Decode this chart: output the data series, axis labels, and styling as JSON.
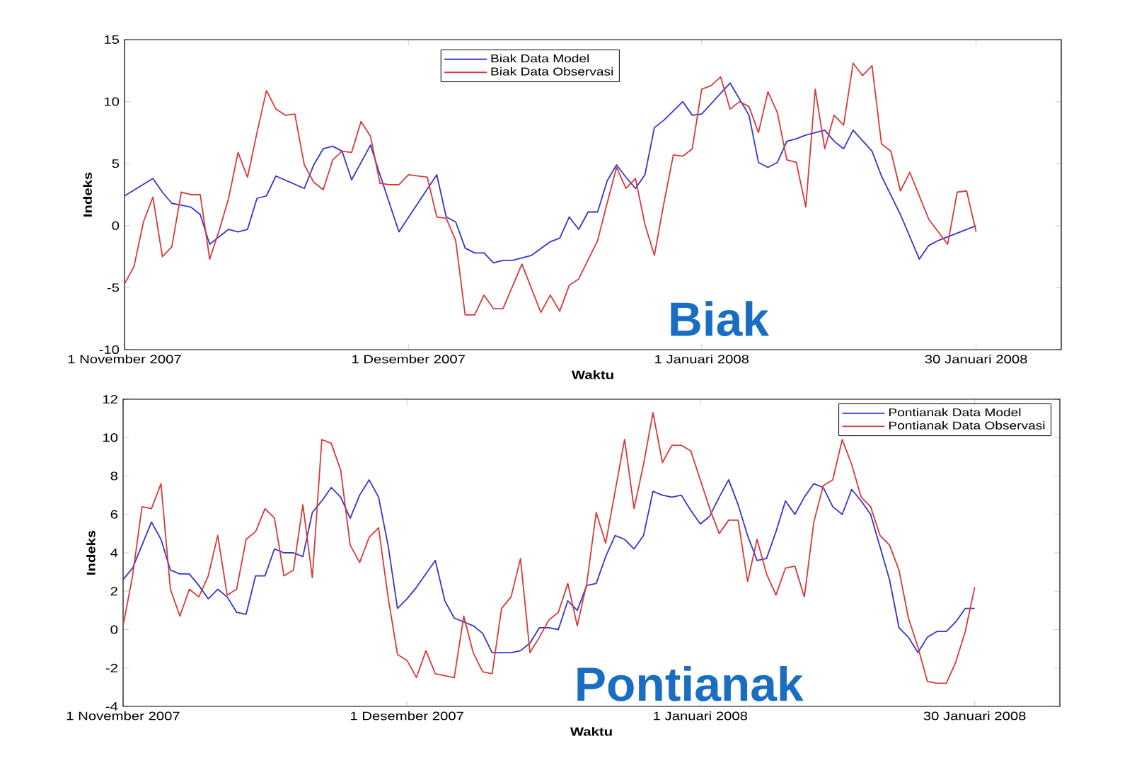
{
  "chart_data": [
    {
      "type": "line",
      "xlabel": "Waktu",
      "ylabel": "Indeks",
      "annotations": [
        "Biak"
      ],
      "xlim": [
        "2007-11-01",
        "2008-02-08"
      ],
      "xticks": [
        {
          "value": "2007-11-01",
          "label": "1 November 2007"
        },
        {
          "value": "2007-12-01",
          "label": "1 Desember 2007"
        },
        {
          "value": "2008-01-01",
          "label": "1 Januari 2008"
        },
        {
          "value": "2008-01-30",
          "label": "30 Januari 2008"
        }
      ],
      "ylim": [
        -10,
        15
      ],
      "yticks": [
        -10,
        -5,
        0,
        5,
        10,
        15
      ],
      "legend": "top",
      "series": [
        {
          "name": "Biak Data Model",
          "color": "#3535c8",
          "x": [
            "2007-11-01",
            "2007-11-04",
            "2007-11-05",
            "2007-11-06",
            "2007-11-08",
            "2007-11-09",
            "2007-11-10",
            "2007-11-12",
            "2007-11-13",
            "2007-11-14",
            "2007-11-15",
            "2007-11-16",
            "2007-11-17",
            "2007-11-20",
            "2007-11-21",
            "2007-11-22",
            "2007-11-23",
            "2007-11-24",
            "2007-11-25",
            "2007-11-27",
            "2007-11-28",
            "2007-11-30",
            "2007-12-04",
            "2007-12-05",
            "2007-12-06",
            "2007-12-07",
            "2007-12-08",
            "2007-12-09",
            "2007-12-10",
            "2007-12-11",
            "2007-12-12",
            "2007-12-14",
            "2007-12-16",
            "2007-12-17",
            "2007-12-18",
            "2007-12-19",
            "2007-12-20",
            "2007-12-21",
            "2007-12-22",
            "2007-12-23",
            "2007-12-24",
            "2007-12-25",
            "2007-12-26",
            "2007-12-27",
            "2007-12-28",
            "2007-12-30",
            "2007-12-31",
            "2008-01-01",
            "2008-01-04",
            "2008-01-06",
            "2008-01-07",
            "2008-01-08",
            "2008-01-09",
            "2008-01-10",
            "2008-01-11",
            "2008-01-12",
            "2008-01-14",
            "2008-01-15",
            "2008-01-16",
            "2008-01-17",
            "2008-01-19",
            "2008-01-20",
            "2008-01-22",
            "2008-01-24",
            "2008-01-25",
            "2008-01-26",
            "2008-01-28",
            "2008-01-30"
          ],
          "values": [
            2.4,
            3.8,
            2.7,
            1.8,
            1.5,
            0.9,
            -1.5,
            -0.3,
            -0.5,
            -0.3,
            2.2,
            2.4,
            4.0,
            3.0,
            4.9,
            6.2,
            6.4,
            6.0,
            3.7,
            6.5,
            4.1,
            -0.5,
            4.1,
            0.7,
            0.3,
            -1.8,
            -2.2,
            -2.2,
            -3.0,
            -2.8,
            -2.8,
            -2.4,
            -1.3,
            -1.0,
            0.7,
            -0.3,
            1.1,
            1.1,
            3.6,
            4.9,
            3.9,
            3.0,
            4.1,
            7.9,
            8.5,
            10.0,
            8.9,
            9.0,
            11.5,
            8.9,
            5.1,
            4.7,
            5.1,
            6.8,
            7.0,
            7.3,
            7.7,
            6.8,
            6.2,
            7.7,
            6.0,
            4.0,
            0.9,
            -2.7,
            -1.6,
            -1.2,
            -0.6,
            0.0
          ]
        },
        {
          "name": "Biak Data Observasi",
          "color": "#d83a3a",
          "x": [
            "2007-11-01",
            "2007-11-02",
            "2007-11-03",
            "2007-11-04",
            "2007-11-05",
            "2007-11-06",
            "2007-11-07",
            "2007-11-08",
            "2007-11-09",
            "2007-11-10",
            "2007-11-11",
            "2007-11-12",
            "2007-11-13",
            "2007-11-14",
            "2007-11-15",
            "2007-11-16",
            "2007-11-17",
            "2007-11-18",
            "2007-11-19",
            "2007-11-20",
            "2007-11-21",
            "2007-11-22",
            "2007-11-23",
            "2007-11-24",
            "2007-11-25",
            "2007-11-26",
            "2007-11-27",
            "2007-11-28",
            "2007-11-29",
            "2007-11-30",
            "2007-12-01",
            "2007-12-03",
            "2007-12-04",
            "2007-12-05",
            "2007-12-06",
            "2007-12-07",
            "2007-12-08",
            "2007-12-09",
            "2007-12-10",
            "2007-12-11",
            "2007-12-13",
            "2007-12-15",
            "2007-12-16",
            "2007-12-17",
            "2007-12-18",
            "2007-12-19",
            "2007-12-21",
            "2007-12-22",
            "2007-12-23",
            "2007-12-24",
            "2007-12-25",
            "2007-12-26",
            "2007-12-27",
            "2007-12-28",
            "2007-12-29",
            "2007-12-30",
            "2007-12-31",
            "2008-01-01",
            "2008-01-02",
            "2008-01-03",
            "2008-01-04",
            "2008-01-05",
            "2008-01-06",
            "2008-01-07",
            "2008-01-08",
            "2008-01-09",
            "2008-01-10",
            "2008-01-11",
            "2008-01-12",
            "2008-01-13",
            "2008-01-14",
            "2008-01-15",
            "2008-01-16",
            "2008-01-17",
            "2008-01-18",
            "2008-01-19",
            "2008-01-20",
            "2008-01-21",
            "2008-01-22",
            "2008-01-23",
            "2008-01-25",
            "2008-01-27",
            "2008-01-28",
            "2008-01-29",
            "2008-01-30"
          ],
          "values": [
            -4.7,
            -3.3,
            0.3,
            2.3,
            -2.5,
            -1.7,
            2.7,
            2.5,
            2.5,
            -2.7,
            -0.4,
            2.2,
            5.9,
            3.9,
            7.5,
            10.9,
            9.4,
            8.9,
            9.0,
            4.9,
            3.5,
            2.9,
            5.3,
            6.0,
            5.9,
            8.4,
            7.2,
            3.4,
            3.3,
            3.3,
            4.1,
            3.9,
            0.7,
            0.6,
            -1.2,
            -7.2,
            -7.2,
            -5.6,
            -6.7,
            -6.7,
            -3.1,
            -7.0,
            -5.6,
            -6.9,
            -4.8,
            -4.3,
            -1.2,
            1.8,
            4.7,
            3.0,
            3.8,
            0.1,
            -2.4,
            1.8,
            5.7,
            5.6,
            6.2,
            11.0,
            11.3,
            12.0,
            9.4,
            10.0,
            9.6,
            7.5,
            10.8,
            9.1,
            5.3,
            5.1,
            1.5,
            11.0,
            6.2,
            8.9,
            8.1,
            13.1,
            12.1,
            12.9,
            6.6,
            6.0,
            2.8,
            4.3,
            0.5,
            -1.5,
            2.7,
            2.8,
            -0.5
          ]
        }
      ]
    },
    {
      "type": "line",
      "xlabel": "Waktu",
      "ylabel": "Indeks",
      "annotations": [
        "Pontianak"
      ],
      "xlim": [
        "2007-11-01",
        "2008-02-08"
      ],
      "xticks": [
        {
          "value": "2007-11-01",
          "label": "1 November 2007"
        },
        {
          "value": "2007-12-01",
          "label": "1 Desember 2007"
        },
        {
          "value": "2008-01-01",
          "label": "1 Januari 2008"
        },
        {
          "value": "2008-01-30",
          "label": "30 Januari 2008"
        }
      ],
      "ylim": [
        -4,
        12
      ],
      "yticks": [
        -4,
        -2,
        0,
        2,
        4,
        6,
        8,
        10,
        12
      ],
      "legend": "top right",
      "x": [
        "2007-11-01",
        "2007-11-02",
        "2007-11-03",
        "2007-11-04",
        "2007-11-05",
        "2007-11-06",
        "2007-11-07",
        "2007-11-08",
        "2007-11-09",
        "2007-11-10",
        "2007-11-11",
        "2007-11-12",
        "2007-11-13",
        "2007-11-14",
        "2007-11-15",
        "2007-11-16",
        "2007-11-17",
        "2007-11-18",
        "2007-11-19",
        "2007-11-20",
        "2007-11-21",
        "2007-11-22",
        "2007-11-23",
        "2007-11-24",
        "2007-11-25",
        "2007-11-26",
        "2007-11-27",
        "2007-11-28",
        "2007-11-29",
        "2007-11-30",
        "2007-12-01",
        "2007-12-02",
        "2007-12-03",
        "2007-12-04",
        "2007-12-05",
        "2007-12-06",
        "2007-12-07",
        "2007-12-08",
        "2007-12-09",
        "2007-12-10",
        "2007-12-11",
        "2007-12-12",
        "2007-12-13",
        "2007-12-14",
        "2007-12-15",
        "2007-12-16",
        "2007-12-17",
        "2007-12-18",
        "2007-12-19",
        "2007-12-20",
        "2007-12-21",
        "2007-12-22",
        "2007-12-23",
        "2007-12-24",
        "2007-12-25",
        "2007-12-26",
        "2007-12-27",
        "2007-12-28",
        "2007-12-29",
        "2007-12-30",
        "2007-12-31",
        "2008-01-01",
        "2008-01-02",
        "2008-01-03",
        "2008-01-04",
        "2008-01-05",
        "2008-01-06",
        "2008-01-07",
        "2008-01-08",
        "2008-01-09",
        "2008-01-10",
        "2008-01-11",
        "2008-01-12",
        "2008-01-13",
        "2008-01-14",
        "2008-01-15",
        "2008-01-16",
        "2008-01-17",
        "2008-01-18",
        "2008-01-19",
        "2008-01-20",
        "2008-01-21",
        "2008-01-22",
        "2008-01-23",
        "2008-01-24",
        "2008-01-25",
        "2008-01-26",
        "2008-01-27",
        "2008-01-28",
        "2008-01-29",
        "2008-01-30"
      ],
      "series": [
        {
          "name": "Pontianak Data Model",
          "color": "#3535c8",
          "values": [
            2.6,
            3.2,
            4.4,
            5.6,
            4.7,
            3.1,
            2.9,
            2.9,
            2.3,
            1.6,
            2.1,
            1.7,
            0.9,
            0.8,
            2.8,
            2.8,
            4.2,
            4.0,
            4.0,
            3.8,
            6.1,
            6.7,
            7.4,
            6.9,
            5.8,
            7.0,
            7.8,
            6.9,
            4.4,
            1.1,
            1.6,
            2.2,
            2.9,
            3.6,
            1.5,
            0.6,
            0.4,
            0.2,
            -0.2,
            -1.2,
            -1.2,
            -1.2,
            -1.1,
            -0.7,
            0.1,
            0.1,
            0.0,
            1.5,
            1.0,
            2.3,
            2.4,
            3.8,
            4.9,
            4.7,
            4.2,
            4.9,
            7.2,
            7.0,
            6.9,
            7.0,
            6.2,
            5.5,
            5.9,
            6.9,
            7.8,
            6.5,
            4.9,
            3.6,
            3.7,
            5.1,
            6.7,
            6.0,
            6.9,
            7.6,
            7.4,
            6.4,
            6.0,
            7.3,
            6.7,
            6.0,
            4.3,
            2.6,
            0.1,
            -0.4,
            -1.2,
            -0.4,
            -0.1,
            -0.1,
            0.4,
            1.1,
            1.1
          ]
        },
        {
          "name": "Pontianak Data Observasi",
          "color": "#d83a3a",
          "values": [
            0.2,
            2.8,
            6.4,
            6.3,
            7.6,
            2.1,
            0.7,
            2.1,
            1.7,
            2.8,
            4.9,
            1.8,
            2.1,
            4.7,
            5.1,
            6.3,
            5.8,
            2.8,
            3.1,
            6.5,
            2.7,
            9.9,
            9.7,
            8.3,
            4.4,
            3.5,
            4.8,
            5.3,
            1.7,
            -1.3,
            -1.6,
            -2.5,
            -1.1,
            -2.3,
            -2.4,
            -2.5,
            0.7,
            -1.2,
            -2.2,
            -2.3,
            1.1,
            1.7,
            3.7,
            -1.2,
            -0.4,
            0.5,
            0.9,
            2.4,
            0.2,
            2.4,
            6.1,
            4.5,
            7.2,
            9.9,
            6.3,
            8.6,
            11.3,
            8.7,
            9.6,
            9.6,
            9.3,
            7.8,
            6.3,
            5.0,
            5.7,
            5.7,
            2.5,
            4.7,
            2.9,
            1.8,
            3.2,
            3.3,
            1.7,
            5.6,
            7.5,
            7.8,
            9.9,
            8.6,
            6.9,
            6.4,
            4.9,
            4.4,
            3.1,
            0.6,
            -0.9,
            -2.7,
            -2.8,
            -2.8,
            -1.7,
            -0.1,
            2.2
          ]
        }
      ]
    }
  ]
}
